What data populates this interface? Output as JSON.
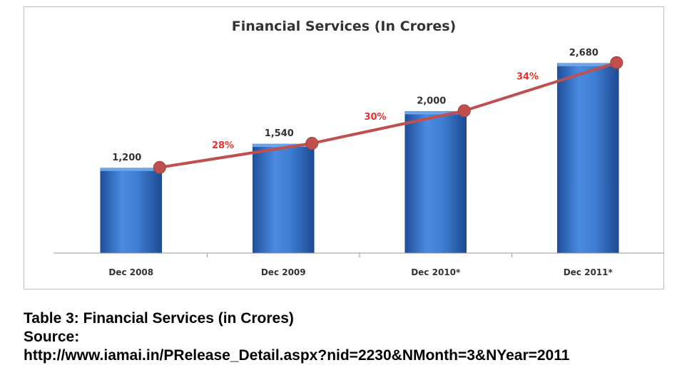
{
  "chart_data": {
    "type": "bar",
    "title": "Financial Services (In Crores)",
    "categories": [
      "Dec 2008",
      "Dec 2009",
      "Dec 2010*",
      "Dec 2011*"
    ],
    "values": [
      1200,
      1540,
      2000,
      2680
    ],
    "value_labels": [
      "1,200",
      "1,540",
      "2,000",
      "2,680"
    ],
    "growth_labels": [
      "28%",
      "30%",
      "34%"
    ],
    "xlabel": "",
    "ylabel": "",
    "ylim": [
      0,
      2900
    ],
    "grid": false,
    "legend": "none",
    "overlay_line": "trend line through bar tops",
    "colors": {
      "bar": "#3f7fd4",
      "bar_dark": "#1f4f9a",
      "line": "#c0504d",
      "growth_label": "#e8312c"
    }
  },
  "caption": {
    "line1": "Table 3: Financial Services (in Crores)",
    "line2": "Source:",
    "line3": "http://www.iamai.in/PRelease_Detail.aspx?nid=2230&NMonth=3&NYear=2011"
  }
}
